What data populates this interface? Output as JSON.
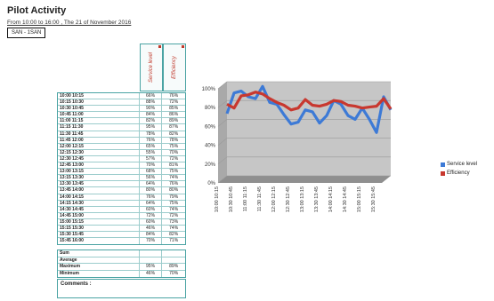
{
  "header": {
    "title": "Pilot Activity",
    "subtitle": "From 10:00 to 16:00 , The 21 of November 2016",
    "badge": "SAN - 1SAN"
  },
  "table": {
    "columns": [
      "Service level",
      "Efficiency"
    ],
    "rows": [
      {
        "time": "10:00 10:15",
        "service": "66%",
        "efficiency": "76%"
      },
      {
        "time": "10:15 10:30",
        "service": "88%",
        "efficiency": "72%"
      },
      {
        "time": "10:30 10:45",
        "service": "90%",
        "efficiency": "85%"
      },
      {
        "time": "10:45 11:00",
        "service": "84%",
        "efficiency": "86%"
      },
      {
        "time": "11:00 11:15",
        "service": "82%",
        "efficiency": "89%"
      },
      {
        "time": "11:15 11:30",
        "service": "95%",
        "efficiency": "87%"
      },
      {
        "time": "11:30 11:45",
        "service": "78%",
        "efficiency": "82%"
      },
      {
        "time": "11:45 12:00",
        "service": "76%",
        "efficiency": "78%"
      },
      {
        "time": "12:00 12:15",
        "service": "65%",
        "efficiency": "75%"
      },
      {
        "time": "12:15 12:30",
        "service": "55%",
        "efficiency": "70%"
      },
      {
        "time": "12:30 12:45",
        "service": "57%",
        "efficiency": "72%"
      },
      {
        "time": "12:45 13:00",
        "service": "70%",
        "efficiency": "81%"
      },
      {
        "time": "13:00 13:15",
        "service": "68%",
        "efficiency": "75%"
      },
      {
        "time": "13:15 13:30",
        "service": "56%",
        "efficiency": "74%"
      },
      {
        "time": "13:30 13:45",
        "service": "64%",
        "efficiency": "76%"
      },
      {
        "time": "13:45 14:00",
        "service": "80%",
        "efficiency": "80%"
      },
      {
        "time": "14:00 14:15",
        "service": "76%",
        "efficiency": "79%"
      },
      {
        "time": "14:15 14:30",
        "service": "64%",
        "efficiency": "75%"
      },
      {
        "time": "14:30 14:45",
        "service": "60%",
        "efficiency": "74%"
      },
      {
        "time": "14:45 15:00",
        "service": "72%",
        "efficiency": "72%"
      },
      {
        "time": "15:00 15:15",
        "service": "60%",
        "efficiency": "73%"
      },
      {
        "time": "15:15 15:30",
        "service": "46%",
        "efficiency": "74%"
      },
      {
        "time": "15:30 15:45",
        "service": "84%",
        "efficiency": "82%"
      },
      {
        "time": "15:45 16:00",
        "service": "70%",
        "efficiency": "71%"
      }
    ],
    "summary": [
      {
        "label": "Sum",
        "service": "",
        "efficiency": ""
      },
      {
        "label": "Average",
        "service": "",
        "efficiency": ""
      },
      {
        "label": "Maximum",
        "service": "95%",
        "efficiency": "89%"
      },
      {
        "label": "Minimum",
        "service": "46%",
        "efficiency": "70%"
      }
    ],
    "comments_label": "Comments :"
  },
  "chart_data": {
    "type": "line",
    "title": "",
    "xlabel": "",
    "ylabel": "",
    "ylim": [
      0,
      100
    ],
    "y_ticks": [
      "0%",
      "20%",
      "40%",
      "60%",
      "80%",
      "100%"
    ],
    "x": [
      "10:00 10:15",
      "10:30 10:45",
      "11:00 11:15",
      "11:30 11:45",
      "12:00 12:15",
      "12:30 12:45",
      "13:00 13:15",
      "13:30 13:45",
      "14:00 14:15",
      "14:30 14:45",
      "15:00 15:15",
      "15:30 15:45"
    ],
    "categories": [
      "10:00 10:15",
      "10:15 10:30",
      "10:30 10:45",
      "10:45 11:00",
      "11:00 11:15",
      "11:15 11:30",
      "11:30 11:45",
      "11:45 12:00",
      "12:00 12:15",
      "12:15 12:30",
      "12:30 12:45",
      "12:45 13:00",
      "13:00 13:15",
      "13:15 13:30",
      "13:30 13:45",
      "13:45 14:00",
      "14:00 14:15",
      "14:15 14:30",
      "14:30 14:45",
      "14:45 15:00",
      "15:00 15:15",
      "15:15 15:30",
      "15:30 15:45",
      "15:45 16:00"
    ],
    "series": [
      {
        "name": "Service level",
        "color": "#3d7ad6",
        "values": [
          66,
          88,
          90,
          84,
          82,
          95,
          78,
          76,
          65,
          55,
          57,
          70,
          68,
          56,
          64,
          80,
          76,
          64,
          60,
          72,
          60,
          46,
          84,
          70
        ]
      },
      {
        "name": "Efficiency",
        "color": "#c8382f",
        "values": [
          76,
          72,
          85,
          86,
          89,
          87,
          82,
          78,
          75,
          70,
          72,
          81,
          75,
          74,
          76,
          80,
          79,
          75,
          74,
          72,
          73,
          74,
          82,
          71
        ]
      }
    ],
    "legend": "right",
    "grid": true
  }
}
